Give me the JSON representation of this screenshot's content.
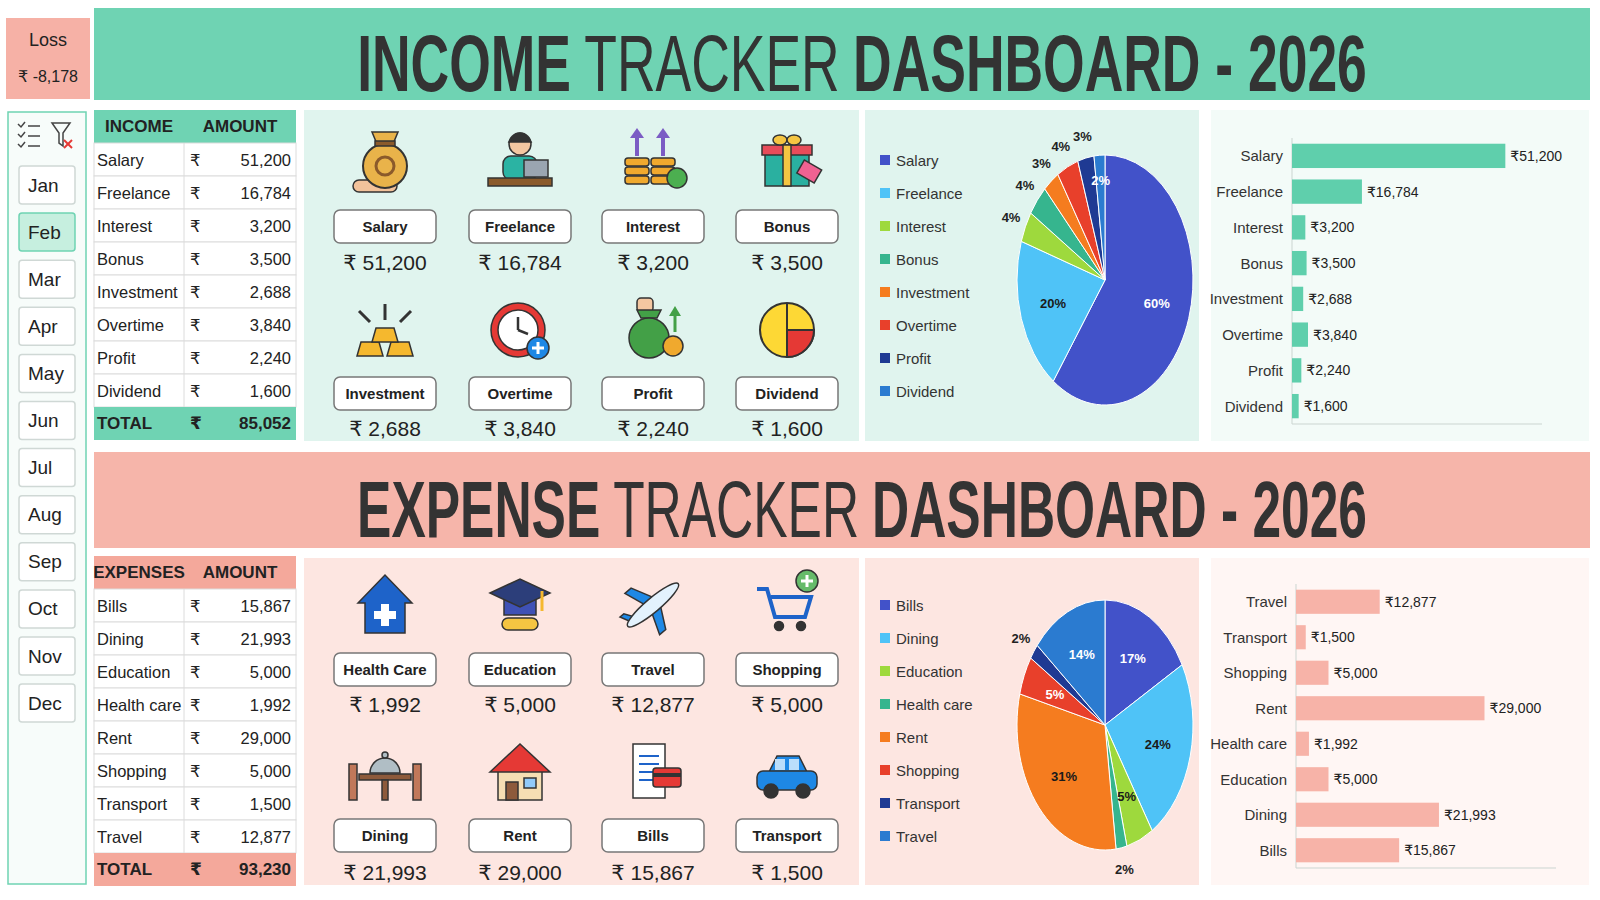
{
  "loss": {
    "label": "Loss",
    "value": "₹ -8,178"
  },
  "months": {
    "items": [
      "Jan",
      "Feb",
      "Mar",
      "Apr",
      "May",
      "Jun",
      "Jul",
      "Aug",
      "Sep",
      "Oct",
      "Nov",
      "Dec"
    ],
    "selected": "Feb"
  },
  "income": {
    "title": [
      "INCOME",
      "TRACKER",
      "DASHBOARD - 2026"
    ],
    "table": {
      "header": [
        "INCOME",
        "AMOUNT"
      ],
      "currency": "₹",
      "rows": [
        [
          "Salary",
          "51,200"
        ],
        [
          "Freelance",
          "16,784"
        ],
        [
          "Interest",
          "3,200"
        ],
        [
          "Bonus",
          "3,500"
        ],
        [
          "Investment",
          "2,688"
        ],
        [
          "Overtime",
          "3,840"
        ],
        [
          "Profit",
          "2,240"
        ],
        [
          "Dividend",
          "1,600"
        ]
      ],
      "total": [
        "TOTAL",
        "85,052"
      ]
    },
    "cards": [
      {
        "label": "Salary",
        "value": "₹ 51,200"
      },
      {
        "label": "Freelance",
        "value": "₹ 16,784"
      },
      {
        "label": "Interest",
        "value": "₹ 3,200"
      },
      {
        "label": "Bonus",
        "value": "₹ 3,500"
      },
      {
        "label": "Investment",
        "value": "₹ 2,688"
      },
      {
        "label": "Overtime",
        "value": "₹ 3,840"
      },
      {
        "label": "Profit",
        "value": "₹ 2,240"
      },
      {
        "label": "Dividend",
        "value": "₹ 1,600"
      }
    ]
  },
  "expense": {
    "title": [
      "EXPENSE",
      "TRACKER",
      "DASHBOARD - 2026"
    ],
    "table": {
      "header": [
        "EXPENSES",
        "AMOUNT"
      ],
      "currency": "₹",
      "rows": [
        [
          "Bills",
          "15,867"
        ],
        [
          "Dining",
          "21,993"
        ],
        [
          "Education",
          "5,000"
        ],
        [
          "Health care",
          "1,992"
        ],
        [
          "Rent",
          "29,000"
        ],
        [
          "Shopping",
          "5,000"
        ],
        [
          "Transport",
          "1,500"
        ],
        [
          "Travel",
          "12,877"
        ]
      ],
      "total": [
        "TOTAL",
        "93,230"
      ]
    },
    "cards": [
      {
        "label": "Health Care",
        "value": "₹ 1,992"
      },
      {
        "label": "Education",
        "value": "₹ 5,000"
      },
      {
        "label": "Travel",
        "value": "₹ 12,877"
      },
      {
        "label": "Shopping",
        "value": "₹ 5,000"
      },
      {
        "label": "Dining",
        "value": "₹ 21,993"
      },
      {
        "label": "Rent",
        "value": "₹ 29,000"
      },
      {
        "label": "Bills",
        "value": "₹ 15,867"
      },
      {
        "label": "Transport",
        "value": "₹ 1,500"
      }
    ]
  },
  "chart_data": [
    {
      "type": "pie",
      "categories": [
        "Salary",
        "Freelance",
        "Interest",
        "Bonus",
        "Investment",
        "Overtime",
        "Profit",
        "Dividend"
      ],
      "values": [
        60,
        20,
        4,
        4,
        3,
        4,
        3,
        2
      ],
      "value_labels": [
        "60%",
        "20%",
        "4%",
        "4%",
        "3%",
        "4%",
        "3%",
        "2%"
      ],
      "colors": [
        "#4252c9",
        "#4fc3f7",
        "#9ed93d",
        "#36b58e",
        "#f57c1f",
        "#e8402b",
        "#1f3a93",
        "#2b7bd0"
      ],
      "legend": "left",
      "data_labels": true
    },
    {
      "type": "bar",
      "orientation": "horizontal",
      "categories": [
        "Salary",
        "Freelance",
        "Interest",
        "Bonus",
        "Investment",
        "Overtime",
        "Profit",
        "Dividend"
      ],
      "values": [
        51200,
        16784,
        3200,
        3500,
        2688,
        3840,
        2240,
        1600
      ],
      "value_labels": [
        "₹51,200",
        "₹16,784",
        "₹3,200",
        "₹3,500",
        "₹2,688",
        "₹3,840",
        "₹2,240",
        "₹1,600"
      ],
      "color": "#5fcfac",
      "xlim": [
        0,
        60000
      ],
      "xticks": [],
      "tick_labels": "y",
      "grid": false,
      "data_labels": true
    },
    {
      "type": "pie",
      "categories": [
        "Bills",
        "Dining",
        "Education",
        "Health care",
        "Rent",
        "Shopping",
        "Transport",
        "Travel"
      ],
      "values": [
        17,
        24,
        5,
        2,
        31,
        5,
        2,
        14
      ],
      "value_labels": [
        "17%",
        "24%",
        "5%",
        "2%",
        "31%",
        "5%",
        "2%",
        "14%"
      ],
      "colors": [
        "#4252c9",
        "#4fc3f7",
        "#9ed93d",
        "#36b58e",
        "#f57c1f",
        "#e8402b",
        "#1f3a93",
        "#2b7bd0"
      ],
      "legend": "left",
      "data_labels": true
    },
    {
      "type": "bar",
      "orientation": "horizontal",
      "categories": [
        "Travel",
        "Transport",
        "Shopping",
        "Rent",
        "Health care",
        "Education",
        "Dining",
        "Bills"
      ],
      "values": [
        12877,
        1500,
        5000,
        29000,
        1992,
        5000,
        21993,
        15867
      ],
      "value_labels": [
        "₹12,877",
        "₹1,500",
        "₹5,000",
        "₹29,000",
        "₹1,992",
        "₹5,000",
        "₹21,993",
        "₹15,867"
      ],
      "color": "#f7b3a8",
      "xlim": [
        0,
        40000
      ],
      "xticks": [],
      "tick_labels": "y",
      "grid": false,
      "data_labels": true
    }
  ]
}
